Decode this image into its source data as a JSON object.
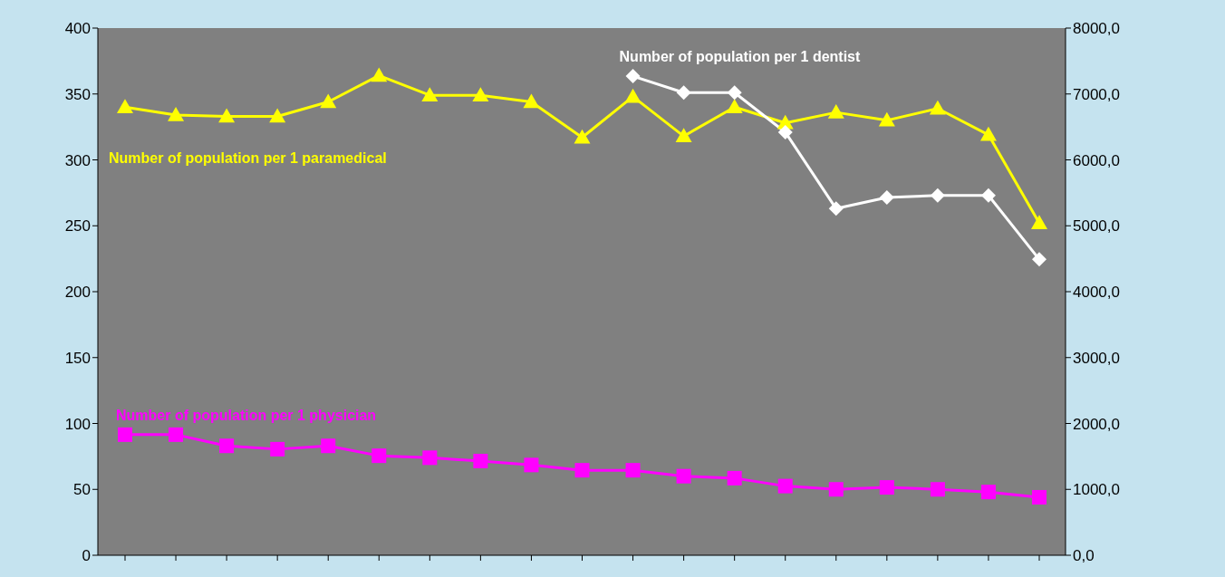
{
  "chart_data": {
    "type": "line",
    "categories": [
      null,
      null,
      null,
      null,
      null,
      null,
      null,
      null,
      null,
      null,
      null,
      null,
      null,
      null,
      null,
      null,
      null,
      null,
      null
    ],
    "series": [
      {
        "name": "Number of population per 1 paramedical",
        "color": "#ffff00",
        "marker": "triangle",
        "values": [
          340,
          334,
          333,
          333,
          344,
          364,
          349,
          349,
          344,
          317,
          348,
          318,
          340,
          328,
          336,
          330,
          339,
          319,
          252
        ]
      },
      {
        "name": "Number of population per 1 dentist",
        "color": "#ffffff",
        "marker": "diamond",
        "axis": "y2",
        "values": [
          null,
          null,
          null,
          null,
          null,
          null,
          null,
          null,
          null,
          null,
          7270,
          7020,
          7020,
          6420,
          5260,
          5430,
          5460,
          5460,
          4490
        ]
      },
      {
        "name": "Number of population per 1 physician",
        "color": "#ff00ff",
        "marker": "square",
        "axis": "y2",
        "values": [
          1830,
          1830,
          1660,
          1610,
          1660,
          1510,
          1480,
          1430,
          1370,
          1290,
          1290,
          1200,
          1170,
          1050,
          1000,
          1030,
          1000,
          960,
          880
        ]
      }
    ],
    "ylim": [
      0,
      400
    ],
    "yticks": [
      0,
      50,
      100,
      150,
      200,
      250,
      300,
      350,
      400
    ],
    "y2lim": [
      0,
      8000
    ],
    "y2ticks": [
      {
        "value": 0,
        "label": "0,0"
      },
      {
        "value": 1000,
        "label": "1000,0"
      },
      {
        "value": 2000,
        "label": "2000,0"
      },
      {
        "value": 3000,
        "label": "3000,0"
      },
      {
        "value": 4000,
        "label": "4000,0"
      },
      {
        "value": 5000,
        "label": "5000,0"
      },
      {
        "value": 6000,
        "label": "6000,0"
      },
      {
        "value": 7000,
        "label": "7000,0"
      },
      {
        "value": 8000,
        "label": "8000,0"
      }
    ],
    "grid": false
  }
}
